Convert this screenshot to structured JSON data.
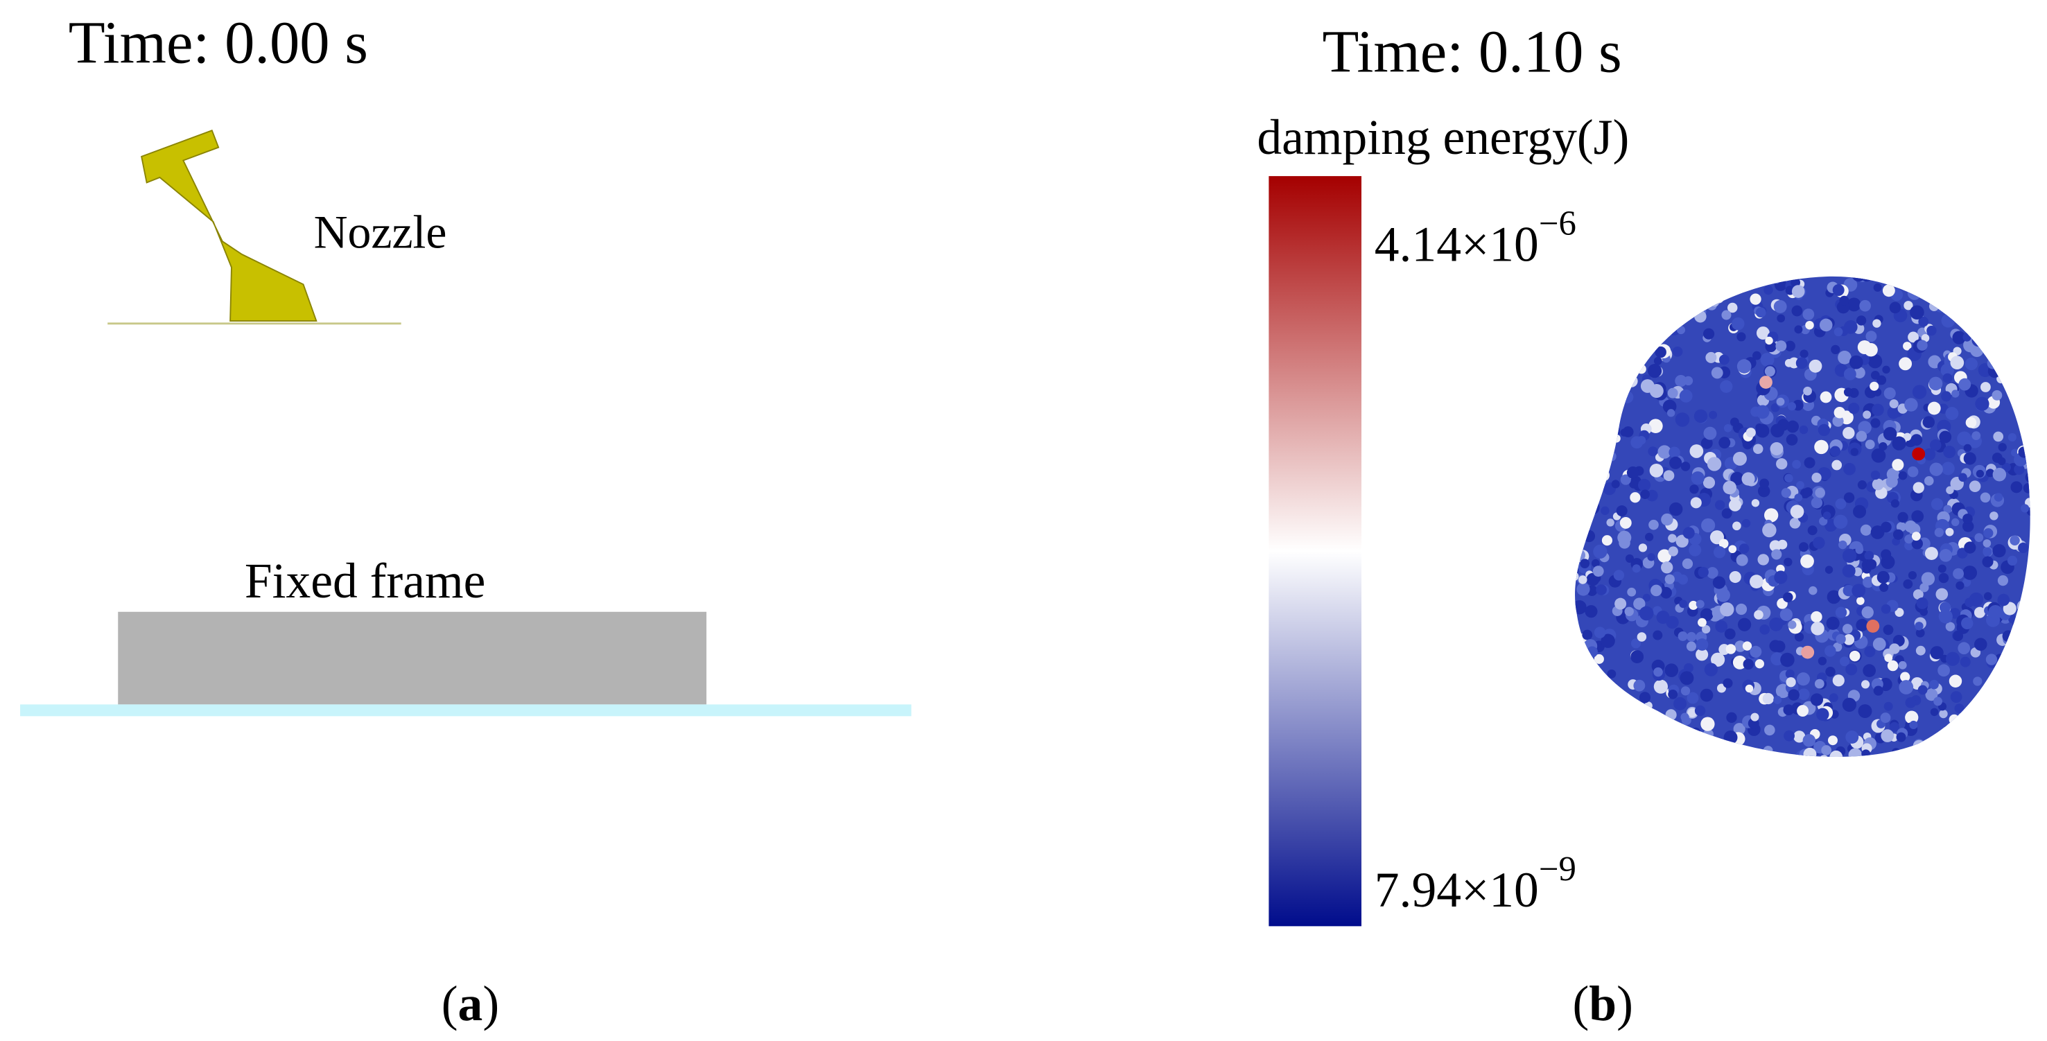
{
  "panel_a": {
    "time": "Time: 0.00 s",
    "nozzle": "Nozzle",
    "frame": "Fixed frame",
    "label": [
      "(",
      "a",
      ")"
    ]
  },
  "panel_b": {
    "time": "Time: 0.10 s",
    "colorbar_title": "damping energy(J)",
    "colorbar_max": {
      "base": "4.14×10",
      "exp": "−6"
    },
    "colorbar_min": {
      "base": "7.94×10",
      "exp": "−9"
    },
    "label": [
      "(",
      "b",
      ")"
    ]
  }
}
